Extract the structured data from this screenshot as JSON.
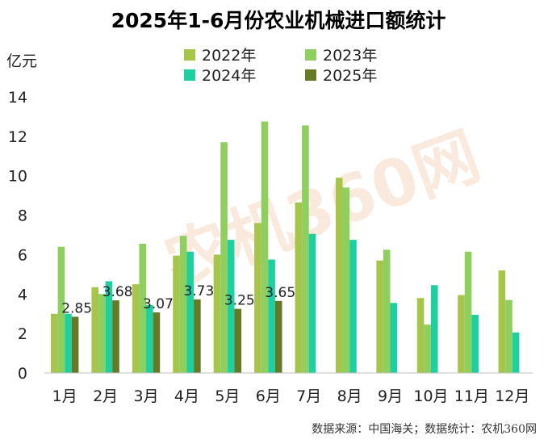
{
  "chart_data": {
    "type": "bar",
    "title": "2025年1-6月份农业机械进口额统计",
    "ylabel": "亿元",
    "ylim": [
      0,
      14
    ],
    "yticks": [
      0,
      2,
      4,
      6,
      8,
      10,
      12,
      14
    ],
    "categories": [
      "1月",
      "2月",
      "3月",
      "4月",
      "5月",
      "6月",
      "7月",
      "8月",
      "9月",
      "10月",
      "11月",
      "12月"
    ],
    "legend": "top-center",
    "series": [
      {
        "name": "2022年",
        "color": "#a6c64b",
        "values": [
          3.0,
          4.35,
          4.5,
          5.95,
          6.0,
          7.6,
          8.65,
          9.9,
          5.7,
          3.8,
          3.95,
          5.2
        ]
      },
      {
        "name": "2023年",
        "color": "#8fcf60",
        "values": [
          6.4,
          4.0,
          6.55,
          6.95,
          11.7,
          12.75,
          12.55,
          9.4,
          6.25,
          2.45,
          6.15,
          3.7
        ]
      },
      {
        "name": "2024年",
        "color": "#1ecfa0",
        "values": [
          3.0,
          4.65,
          3.45,
          6.15,
          6.75,
          5.75,
          7.05,
          6.75,
          3.55,
          4.45,
          2.95,
          2.05
        ]
      },
      {
        "name": "2025年",
        "color": "#667a26",
        "values": [
          2.85,
          3.68,
          3.07,
          3.73,
          3.25,
          3.65,
          null,
          null,
          null,
          null,
          null,
          null
        ]
      }
    ],
    "data_labels": [
      "2.85",
      "3.68",
      "3.07",
      "3.73",
      "3.25",
      "3.65"
    ],
    "grid": false
  },
  "watermark": "农机360网",
  "source_note": "数据来源：中国海关；数据统计：农机360网"
}
